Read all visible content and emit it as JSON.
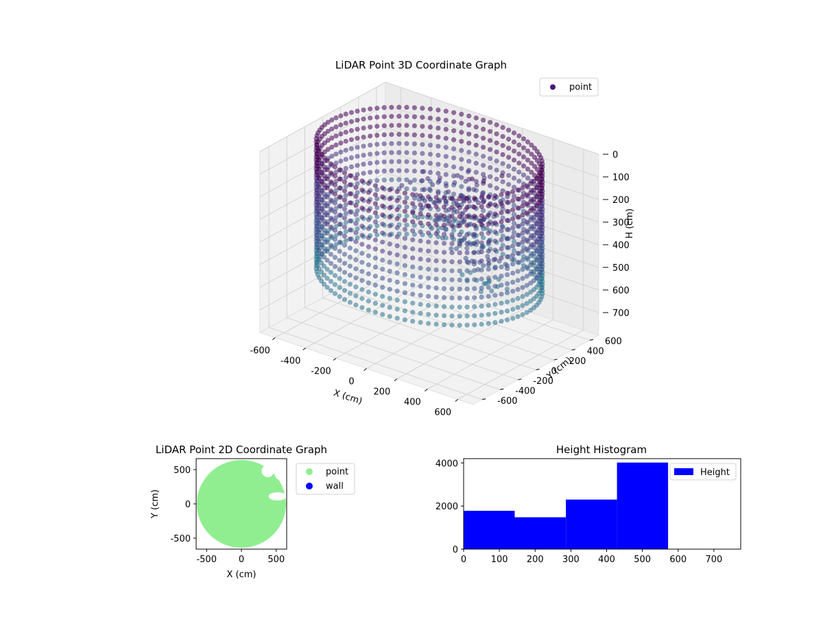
{
  "chart_data": [
    {
      "type": "scatter",
      "projection": "3d",
      "title": "LiDAR Point 3D Coordinate Graph",
      "xlabel": "X (cm)",
      "ylabel": "Y (cm)",
      "zlabel": "H (cm)",
      "xlim": [
        -700,
        700
      ],
      "ylim": [
        -700,
        700
      ],
      "zlim": [
        800,
        0
      ],
      "x_ticks": [
        -600,
        -400,
        -200,
        0,
        200,
        400,
        600
      ],
      "y_ticks": [
        -600,
        -400,
        -200,
        0,
        200,
        400,
        600
      ],
      "z_ticks": [
        0,
        100,
        200,
        300,
        400,
        500,
        600,
        700
      ],
      "z_inverted": true,
      "grid": true,
      "legend_position": "top-right",
      "colormap": "viridis",
      "series": [
        {
          "name": "point",
          "color": "#46197a",
          "ring": {
            "shape": "cylinder",
            "radius": 640,
            "h_min": 0,
            "h_max": 560
          },
          "clusters": [
            {
              "x": 150,
              "y": 300,
              "h": 150
            },
            {
              "x": 50,
              "y": 250,
              "h": 250
            },
            {
              "x": -200,
              "y": 400,
              "h": 250
            },
            {
              "x": 300,
              "y": 100,
              "h": 350
            }
          ]
        }
      ]
    },
    {
      "type": "scatter",
      "title": "LiDAR Point 2D Coordinate Graph",
      "xlabel": "X (cm)",
      "ylabel": "Y (cm)",
      "xlim": [
        -650,
        650
      ],
      "ylim": [
        -660,
        660
      ],
      "x_ticks": [
        -500,
        0,
        500
      ],
      "y_ticks": [
        -500,
        0,
        500
      ],
      "legend_position": "outside-right",
      "series": [
        {
          "name": "point",
          "color": "#90ee90",
          "shape": "disk",
          "center": [
            0,
            0
          ],
          "radius": 640
        },
        {
          "name": "wall",
          "color": "#0000ff"
        }
      ],
      "gaps": [
        {
          "x": 380,
          "y": 480,
          "rx": 90,
          "ry": 90
        },
        {
          "x": 520,
          "y": 110,
          "rx": 130,
          "ry": 60
        },
        {
          "x": 560,
          "y": 430,
          "rx": 80,
          "ry": 80
        }
      ]
    },
    {
      "type": "bar",
      "title": "Height Histogram",
      "xlabel": "",
      "ylabel": "",
      "xlim": [
        0,
        775
      ],
      "ylim": [
        0,
        4200
      ],
      "x_ticks": [
        0,
        100,
        200,
        300,
        400,
        500,
        600,
        700
      ],
      "y_ticks": [
        0,
        2000,
        4000
      ],
      "legend_position": "top-right",
      "series": [
        {
          "name": "Height",
          "color": "#0000ff",
          "bins": [
            {
              "start": 0,
              "end": 143,
              "count": 1780
            },
            {
              "start": 143,
              "end": 286,
              "count": 1480
            },
            {
              "start": 286,
              "end": 429,
              "count": 2300
            },
            {
              "start": 429,
              "end": 572,
              "count": 4020
            }
          ]
        }
      ]
    }
  ]
}
